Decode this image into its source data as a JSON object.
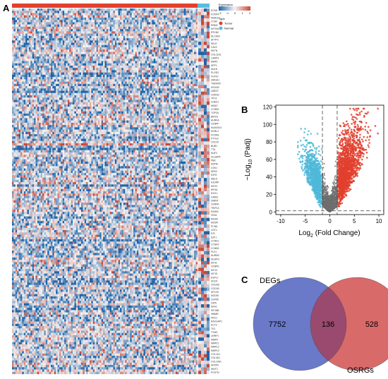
{
  "panels": {
    "a": "A",
    "b": "B",
    "c": "C"
  },
  "colors": {
    "tumor": "#e2402e",
    "normal": "#5bbce0",
    "heat_low": "#1e63a8",
    "heat_mid": "#f4f4f4",
    "heat_high": "#c9483a",
    "volcano_up": "#e2402e",
    "volcano_down": "#4fb8d8",
    "volcano_ns": "#6e6e6e",
    "venn_left": "#6b79c9",
    "venn_right": "#d96a6a",
    "venn_overlap": "#9a4a6e"
  },
  "heatmap": {
    "legend_expression_title": "Expression",
    "legend_ticks": [
      "-2",
      "-1",
      "0",
      "1",
      "2"
    ],
    "legend_type_title": "Type",
    "legend_types": [
      "Tumor",
      "Normal"
    ],
    "gene_labels": [
      "ECM1",
      "FOXP4",
      "NDRG2",
      "CCN2",
      "RRM2",
      "KIF20A",
      "RTKN2",
      "SLC6A4",
      "SFTPC",
      "SELE",
      "CAV2",
      "RETN",
      "COL11A1",
      "LAMP3",
      "MMP1",
      "SPP1",
      "ANLN",
      "PLOD2",
      "FGF10",
      "HMGA1",
      "TNFAIP6",
      "HOXA9",
      "UBE2T",
      "CDKN3",
      "TPX2",
      "CHEK1",
      "MKI67",
      "CCNB1",
      "TOP2A",
      "BIRC5",
      "AURKA",
      "CENPF",
      "KIAA0101",
      "MYBL2",
      "FOXM1",
      "PTTG1",
      "CDC20",
      "BUB1",
      "TTK",
      "NUF2",
      "DLGAP5",
      "PBK",
      "ASPM",
      "CDK1",
      "NEK2",
      "E2F8",
      "MELK",
      "HJURP",
      "KIF2C",
      "KIF4A",
      "EXO1",
      "GINS2",
      "ZWINT",
      "CENPA",
      "TRIP13",
      "RAD51",
      "FEN1",
      "MCM2",
      "MCM4",
      "PCNA",
      "CDT1",
      "DTL",
      "E2F1",
      "CCNE1",
      "CCNA2",
      "CCNB2",
      "PLK1",
      "AURKB",
      "NCAPG",
      "KIF11",
      "CENPE",
      "KIF14",
      "KIF15",
      "ESPL1",
      "SGO2",
      "CDCA8",
      "CDCA5",
      "SPC25",
      "NDC80",
      "CEP55",
      "OIP5",
      "SKA1",
      "KIF18B",
      "HMMR",
      "PRC1",
      "RACGAP1",
      "ECT2",
      "TK1",
      "TYMS",
      "UHRF1",
      "MMP9",
      "MMP11",
      "MMP12",
      "MMP13",
      "COL1A1",
      "COL3A1",
      "COL10A1",
      "SFRP4",
      "WNT2",
      "POSTN"
    ]
  },
  "chart_data": [
    {
      "type": "scatter",
      "panel": "B",
      "title": "",
      "xlabel": "Log2 (Fold Change)",
      "ylabel": "-Log10 (Padj)",
      "xlim": [
        -11,
        11
      ],
      "ylim": [
        -3,
        122
      ],
      "xticks": [
        -10,
        -5,
        0,
        5,
        10
      ],
      "yticks": [
        0,
        20,
        40,
        60,
        80,
        100,
        120
      ],
      "fc_threshold": [
        -1.5,
        1.5
      ],
      "padj_threshold_line": 1.3,
      "grid": false,
      "series": [
        {
          "name": "",
          "group": "down",
          "count": 900
        },
        {
          "name": "",
          "group": "ns",
          "count": 1400
        },
        {
          "name": "",
          "group": "up",
          "count": 1400
        }
      ]
    },
    {
      "type": "venn",
      "panel": "C",
      "sets": [
        {
          "name": "DEGs",
          "only": 7752
        },
        {
          "name": "OSRGs",
          "only": 528
        }
      ],
      "intersection": 136
    }
  ]
}
